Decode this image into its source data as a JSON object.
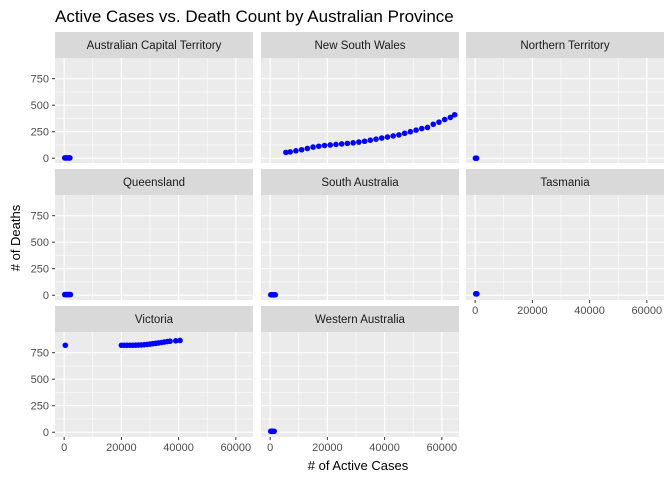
{
  "chart_data": {
    "type": "scatter",
    "title": "Active Cases vs. Death Count by Australian Province",
    "xlabel": "# of Active Cases",
    "ylabel": "# of Deaths",
    "xlim": [
      -3200,
      66000
    ],
    "ylim": [
      -45,
      945
    ],
    "x_ticks": [
      0,
      20000,
      40000,
      60000
    ],
    "y_ticks": [
      0,
      250,
      500,
      750
    ],
    "grid": true,
    "point_color": "#0000ff",
    "panel_background": "#ebebeb",
    "strip_background": "#d9d9d9",
    "facet_layout": {
      "columns": 3,
      "rows": 3
    },
    "series": [
      {
        "name": "Australian Capital Territory",
        "points": [
          [
            200,
            3
          ],
          [
            500,
            3
          ],
          [
            900,
            3
          ],
          [
            1300,
            3
          ],
          [
            1700,
            3
          ],
          [
            2000,
            3
          ]
        ]
      },
      {
        "name": "New South Wales",
        "points": [
          [
            5500,
            55
          ],
          [
            7000,
            60
          ],
          [
            9000,
            70
          ],
          [
            11000,
            80
          ],
          [
            13000,
            92
          ],
          [
            15000,
            105
          ],
          [
            17000,
            113
          ],
          [
            19000,
            120
          ],
          [
            21000,
            125
          ],
          [
            23000,
            130
          ],
          [
            25000,
            135
          ],
          [
            27000,
            140
          ],
          [
            29000,
            145
          ],
          [
            31000,
            152
          ],
          [
            33000,
            160
          ],
          [
            35000,
            170
          ],
          [
            37000,
            180
          ],
          [
            39000,
            190
          ],
          [
            41000,
            200
          ],
          [
            43000,
            210
          ],
          [
            45000,
            220
          ],
          [
            47000,
            235
          ],
          [
            49000,
            250
          ],
          [
            51000,
            265
          ],
          [
            53000,
            280
          ],
          [
            55000,
            290
          ],
          [
            57000,
            320
          ],
          [
            59000,
            340
          ],
          [
            61000,
            365
          ],
          [
            63000,
            385
          ],
          [
            64500,
            410
          ]
        ]
      },
      {
        "name": "Northern Territory",
        "points": [
          [
            100,
            0
          ],
          [
            300,
            0
          ],
          [
            500,
            0
          ]
        ]
      },
      {
        "name": "Queensland",
        "points": [
          [
            200,
            6
          ],
          [
            700,
            6
          ],
          [
            1200,
            6
          ],
          [
            1700,
            6
          ],
          [
            2200,
            6
          ]
        ]
      },
      {
        "name": "South Australia",
        "points": [
          [
            200,
            4
          ],
          [
            600,
            4
          ],
          [
            1000,
            4
          ],
          [
            1400,
            4
          ],
          [
            1800,
            4
          ]
        ]
      },
      {
        "name": "Tasmania",
        "points": [
          [
            200,
            13
          ],
          [
            400,
            13
          ],
          [
            600,
            13
          ]
        ]
      },
      {
        "name": "Victoria",
        "points": [
          [
            400,
            820
          ],
          [
            20000,
            820
          ],
          [
            21000,
            820
          ],
          [
            22000,
            820
          ],
          [
            23000,
            820
          ],
          [
            24000,
            820
          ],
          [
            25000,
            821
          ],
          [
            26000,
            822
          ],
          [
            27000,
            823
          ],
          [
            28000,
            825
          ],
          [
            29000,
            828
          ],
          [
            30000,
            831
          ],
          [
            31000,
            835
          ],
          [
            32000,
            838
          ],
          [
            33000,
            842
          ],
          [
            34000,
            846
          ],
          [
            35000,
            850
          ],
          [
            36000,
            855
          ],
          [
            37000,
            858
          ],
          [
            39000,
            862
          ],
          [
            40500,
            865
          ]
        ]
      },
      {
        "name": "Western Australia",
        "points": [
          [
            200,
            9
          ],
          [
            600,
            9
          ],
          [
            1000,
            9
          ],
          [
            1400,
            9
          ]
        ]
      }
    ]
  }
}
